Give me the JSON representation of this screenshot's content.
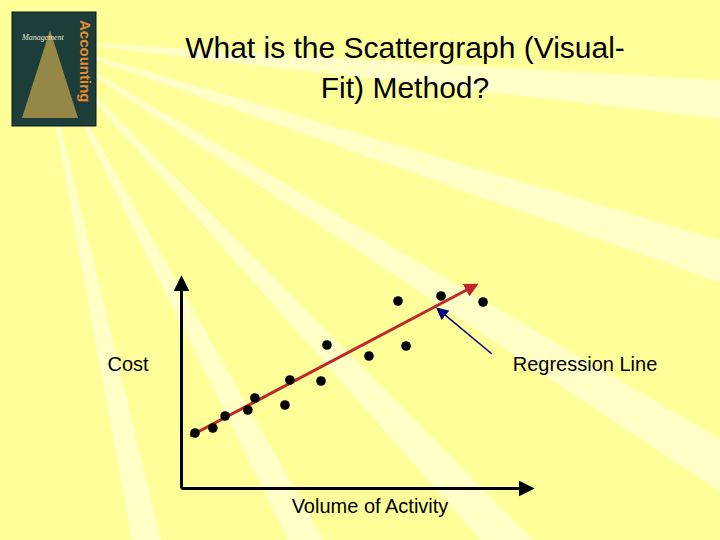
{
  "chart_data": {
    "type": "scatter",
    "title": "What is the Scattergraph (Visual-Fit) Method?",
    "x_label": "Volume of Activity",
    "y_label": "Cost",
    "x": [
      4,
      9.1,
      12.6,
      19.1,
      21.1,
      29.7,
      31.1,
      40,
      41.7,
      53.7,
      64.3,
      62,
      74.3,
      86.3
    ],
    "values": [
      27.5,
      30,
      36,
      39,
      45,
      41.5,
      54,
      53.5,
      71.5,
      66,
      71,
      93.5,
      96,
      93
    ],
    "color": "#000000",
    "marker": "circle",
    "xlim": [
      0,
      100
    ],
    "ylim": [
      0,
      105
    ],
    "tick_labels": false,
    "grid": false,
    "regression_line": {
      "x": [
        2.6,
        84.3
      ],
      "values": [
        26,
        101.5
      ],
      "color": "#c0282a"
    },
    "annotations": [
      {
        "text": "Regression Line",
        "color": "#000080"
      }
    ],
    "cover_texts": [
      "Management",
      "Accounting"
    ]
  }
}
